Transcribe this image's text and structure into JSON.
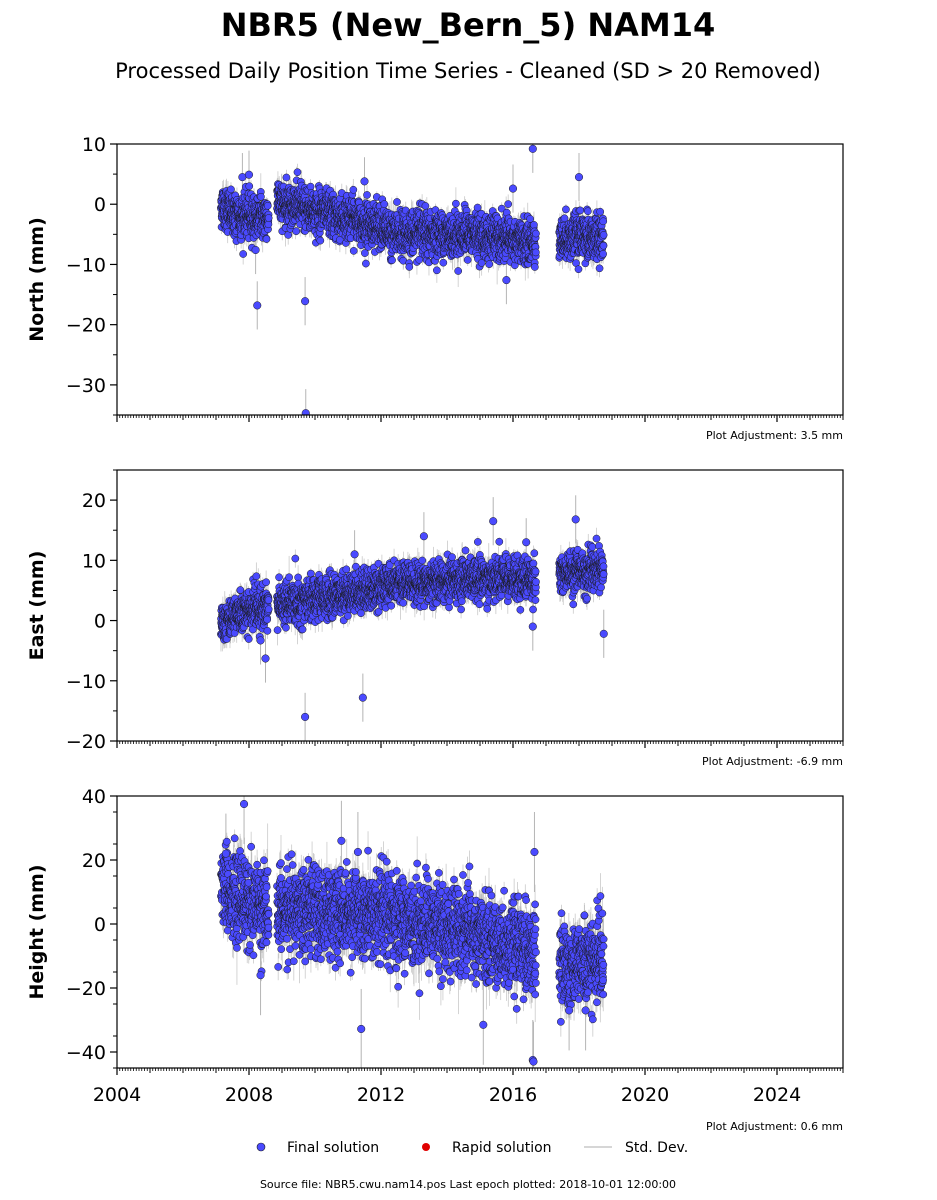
{
  "figure": {
    "title": "NBR5 (New_Bern_5) NAM14",
    "subtitle": "Processed Daily Position Time Series - Cleaned (SD > 20 Removed)",
    "source_note": "Source file: NBR5.cwu.nam14.pos  Last epoch plotted: 2018-10-01 12:00:00"
  },
  "legend": {
    "final": "Final solution",
    "rapid": "Rapid solution",
    "std": "Std. Dev."
  },
  "colors": {
    "final": "#4a4aff",
    "final_edge": "#1a1a1a",
    "rapid": "#e00000",
    "std": "#b4b4b4"
  },
  "chart_data": [
    {
      "type": "scatter",
      "ylabel": "North (mm)",
      "adjustment": "Plot Adjustment: 3.5 mm",
      "xlim": [
        2004,
        2026
      ],
      "ylim": [
        -35,
        10
      ],
      "yticks": [
        10,
        0,
        -10,
        -20,
        -30
      ],
      "ytick_labels": [
        "10",
        "0",
        "−10",
        "−20",
        "−30"
      ],
      "segments": [
        {
          "start": 2007.15,
          "end": 2007.6,
          "mean_start": 0.0,
          "mean_end": -2.0
        },
        {
          "start": 2007.6,
          "end": 2008.6,
          "mean_start": -2.0,
          "mean_end": -2.0
        },
        {
          "start": 2008.85,
          "end": 2011.0,
          "mean_start": 0.5,
          "mean_end": -2.5
        },
        {
          "start": 2011.0,
          "end": 2012.5,
          "mean_start": -2.0,
          "mean_end": -5.0
        },
        {
          "start": 2012.5,
          "end": 2014.5,
          "mean_start": -5.0,
          "mean_end": -5.0
        },
        {
          "start": 2014.5,
          "end": 2016.7,
          "mean_start": -5.0,
          "mean_end": -6.5
        },
        {
          "start": 2017.4,
          "end": 2018.75,
          "mean_start": -5.5,
          "mean_end": -5.5
        }
      ],
      "noise_sd": 1.8,
      "std_sd": 1.6,
      "outliers": [
        {
          "x": 2008.25,
          "y": -16.8
        },
        {
          "x": 2009.7,
          "y": -16.1
        },
        {
          "x": 2009.72,
          "y": -34.7
        },
        {
          "x": 2008.2,
          "y": -7.6
        },
        {
          "x": 2016.6,
          "y": 9.2
        },
        {
          "x": 2018.0,
          "y": 4.5
        },
        {
          "x": 2007.8,
          "y": 4.5
        },
        {
          "x": 2008.0,
          "y": 4.9
        },
        {
          "x": 2011.5,
          "y": 3.8
        },
        {
          "x": 2016.0,
          "y": 2.6
        },
        {
          "x": 2015.8,
          "y": -12.6
        }
      ]
    },
    {
      "type": "scatter",
      "ylabel": "East (mm)",
      "adjustment": "Plot Adjustment: -6.9 mm",
      "xlim": [
        2004,
        2026
      ],
      "ylim": [
        -20,
        25
      ],
      "yticks": [
        20,
        10,
        0,
        -10,
        -20
      ],
      "ytick_labels": [
        "20",
        "10",
        "0",
        "−10",
        "−20"
      ],
      "segments": [
        {
          "start": 2007.15,
          "end": 2007.6,
          "mean_start": 0.0,
          "mean_end": 1.0
        },
        {
          "start": 2007.6,
          "end": 2008.6,
          "mean_start": 1.0,
          "mean_end": 2.5
        },
        {
          "start": 2008.85,
          "end": 2011.0,
          "mean_start": 2.5,
          "mean_end": 4.5
        },
        {
          "start": 2011.0,
          "end": 2012.5,
          "mean_start": 4.5,
          "mean_end": 6.0
        },
        {
          "start": 2012.5,
          "end": 2014.5,
          "mean_start": 6.0,
          "mean_end": 7.0
        },
        {
          "start": 2014.5,
          "end": 2016.7,
          "mean_start": 7.0,
          "mean_end": 7.0
        },
        {
          "start": 2017.4,
          "end": 2018.75,
          "mean_start": 8.0,
          "mean_end": 8.0
        }
      ],
      "noise_sd": 1.7,
      "std_sd": 1.6,
      "outliers": [
        {
          "x": 2009.7,
          "y": -16.0
        },
        {
          "x": 2011.45,
          "y": -12.8
        },
        {
          "x": 2008.5,
          "y": -6.3
        },
        {
          "x": 2008.35,
          "y": -3.3
        },
        {
          "x": 2015.4,
          "y": 16.5
        },
        {
          "x": 2017.9,
          "y": 16.8
        },
        {
          "x": 2013.3,
          "y": 14.0
        },
        {
          "x": 2016.4,
          "y": 13.0
        },
        {
          "x": 2016.6,
          "y": -1.0
        },
        {
          "x": 2018.75,
          "y": -2.2
        },
        {
          "x": 2011.2,
          "y": 11.0
        }
      ]
    },
    {
      "type": "scatter",
      "ylabel": "Height (mm)",
      "adjustment": "Plot Adjustment: 0.6 mm",
      "xlim": [
        2004,
        2026
      ],
      "xticks": [
        2004,
        2008,
        2012,
        2016,
        2020,
        2024
      ],
      "ylim": [
        -45,
        40
      ],
      "yticks": [
        40,
        20,
        0,
        -20,
        -40
      ],
      "ytick_labels": [
        "40",
        "20",
        "0",
        "−20",
        "−40"
      ],
      "segments": [
        {
          "start": 2007.15,
          "end": 2007.6,
          "mean_start": 13.0,
          "mean_end": 10.0
        },
        {
          "start": 2007.6,
          "end": 2008.6,
          "mean_start": 8.0,
          "mean_end": 4.0
        },
        {
          "start": 2008.85,
          "end": 2011.0,
          "mean_start": 4.0,
          "mean_end": 4.0
        },
        {
          "start": 2011.0,
          "end": 2012.5,
          "mean_start": 4.0,
          "mean_end": 2.0
        },
        {
          "start": 2012.5,
          "end": 2014.5,
          "mean_start": 2.0,
          "mean_end": -3.0
        },
        {
          "start": 2014.5,
          "end": 2016.7,
          "mean_start": -3.0,
          "mean_end": -9.0
        },
        {
          "start": 2017.4,
          "end": 2018.75,
          "mean_start": -12.0,
          "mean_end": -12.0
        }
      ],
      "noise_sd": 6.5,
      "std_sd": 5.0,
      "outliers": [
        {
          "x": 2007.85,
          "y": 37.5
        },
        {
          "x": 2011.4,
          "y": -32.8
        },
        {
          "x": 2016.6,
          "y": -42.5
        },
        {
          "x": 2016.62,
          "y": -43.0
        },
        {
          "x": 2016.65,
          "y": 22.5
        },
        {
          "x": 2015.1,
          "y": -31.5
        },
        {
          "x": 2008.35,
          "y": -16.0
        },
        {
          "x": 2011.3,
          "y": 22.5
        },
        {
          "x": 2010.8,
          "y": 26.0
        },
        {
          "x": 2017.7,
          "y": -27.0
        },
        {
          "x": 2018.2,
          "y": -27.0
        },
        {
          "x": 2007.3,
          "y": 22.0
        }
      ]
    }
  ]
}
